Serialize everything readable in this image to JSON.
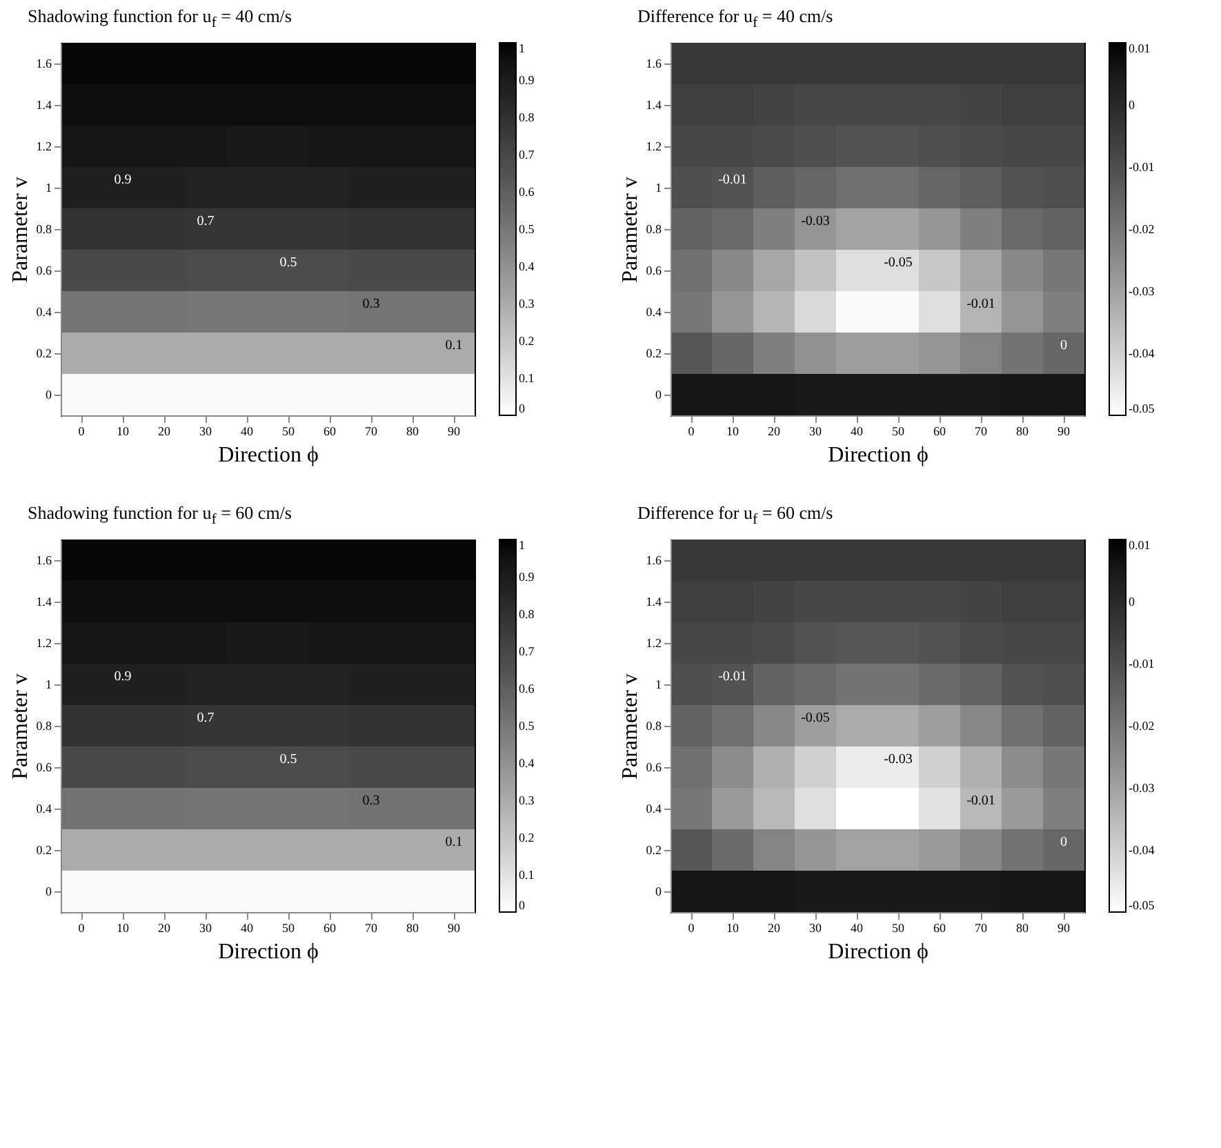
{
  "chart_data": [
    {
      "type": "heatmap",
      "title": "Shadowing function for u$_{f}$ = 40 cm/s",
      "xlabel": "Direction ϕ",
      "ylabel": "Parameter v",
      "categories": [
        "0",
        "10",
        "20",
        "30",
        "40",
        "50",
        "60",
        "70",
        "80",
        "90"
      ],
      "y_categories": [
        "1.6",
        "1.4",
        "1.2",
        "1",
        "0.8",
        "0.6",
        "0.4",
        "0.2",
        "0"
      ],
      "cells": [
        [
          0.98,
          0.98,
          0.98,
          0.98,
          0.98,
          0.98,
          0.98,
          0.98,
          0.98,
          0.98
        ],
        [
          0.96,
          0.96,
          0.96,
          0.96,
          0.96,
          0.96,
          0.96,
          0.96,
          0.96,
          0.96
        ],
        [
          0.93,
          0.93,
          0.93,
          0.93,
          0.92,
          0.92,
          0.93,
          0.93,
          0.93,
          0.93
        ],
        [
          0.88,
          0.88,
          0.88,
          0.87,
          0.87,
          0.87,
          0.87,
          0.88,
          0.88,
          0.88
        ],
        [
          0.79,
          0.79,
          0.79,
          0.78,
          0.78,
          0.78,
          0.78,
          0.79,
          0.79,
          0.79
        ],
        [
          0.69,
          0.69,
          0.69,
          0.68,
          0.68,
          0.68,
          0.68,
          0.69,
          0.69,
          0.69
        ],
        [
          0.51,
          0.51,
          0.51,
          0.5,
          0.5,
          0.5,
          0.5,
          0.51,
          0.51,
          0.51
        ],
        [
          0.3,
          0.3,
          0.3,
          0.3,
          0.3,
          0.3,
          0.3,
          0.3,
          0.3,
          0.3
        ],
        [
          0.02,
          0.02,
          0.02,
          0.02,
          0.02,
          0.02,
          0.02,
          0.02,
          0.02,
          0.02
        ]
      ],
      "clim": [
        0,
        1
      ],
      "cticks": [
        0,
        0.1,
        0.2,
        0.3,
        0.4,
        0.5,
        0.6,
        0.7,
        0.8,
        0.9,
        1
      ],
      "annotations": [
        "0.9",
        "0.7",
        "0.5",
        "0.3",
        "0.1"
      ]
    },
    {
      "type": "heatmap",
      "title": "Difference for u$_{f}$ = 40 cm/s",
      "xlabel": "Direction ϕ",
      "ylabel": "Parameter v",
      "categories": [
        "0",
        "10",
        "20",
        "30",
        "40",
        "50",
        "60",
        "70",
        "80",
        "90"
      ],
      "y_categories": [
        "1.6",
        "1.4",
        "1.2",
        "1",
        "0.8",
        "0.6",
        "0.4",
        "0.2",
        "0"
      ],
      "cells": [
        [
          -0.004,
          -0.004,
          -0.004,
          -0.004,
          -0.004,
          -0.004,
          -0.004,
          -0.004,
          -0.004,
          -0.004
        ],
        [
          -0.006,
          -0.006,
          -0.007,
          -0.008,
          -0.008,
          -0.008,
          -0.008,
          -0.007,
          -0.006,
          -0.006
        ],
        [
          -0.008,
          -0.008,
          -0.009,
          -0.01,
          -0.011,
          -0.011,
          -0.01,
          -0.009,
          -0.008,
          -0.008
        ],
        [
          -0.01,
          -0.011,
          -0.014,
          -0.016,
          -0.018,
          -0.018,
          -0.016,
          -0.014,
          -0.011,
          -0.01
        ],
        [
          -0.015,
          -0.017,
          -0.022,
          -0.027,
          -0.03,
          -0.03,
          -0.027,
          -0.022,
          -0.017,
          -0.015
        ],
        [
          -0.018,
          -0.024,
          -0.031,
          -0.037,
          -0.043,
          -0.043,
          -0.038,
          -0.031,
          -0.024,
          -0.02
        ],
        [
          -0.02,
          -0.027,
          -0.034,
          -0.042,
          -0.049,
          -0.049,
          -0.043,
          -0.034,
          -0.027,
          -0.022
        ],
        [
          -0.012,
          -0.016,
          -0.022,
          -0.026,
          -0.029,
          -0.029,
          -0.027,
          -0.023,
          -0.019,
          -0.016
        ],
        [
          0.006,
          0.006,
          0.006,
          0.005,
          0.005,
          0.005,
          0.005,
          0.005,
          0.006,
          0.006
        ]
      ],
      "clim": [
        -0.05,
        0.01
      ],
      "cticks": [
        -0.05,
        -0.04,
        -0.03,
        -0.02,
        -0.01,
        0,
        0.01
      ],
      "annotations": [
        "-0.01",
        "-0.03",
        "-0.05",
        "-0.01",
        "0"
      ]
    },
    {
      "type": "heatmap",
      "title": "Shadowing function for u$_{f}$ = 60 cm/s",
      "xlabel": "Direction ϕ",
      "ylabel": "Parameter v",
      "categories": [
        "0",
        "10",
        "20",
        "30",
        "40",
        "50",
        "60",
        "70",
        "80",
        "90"
      ],
      "y_categories": [
        "1.6",
        "1.4",
        "1.2",
        "1",
        "0.8",
        "0.6",
        "0.4",
        "0.2",
        "0"
      ],
      "cells": [
        [
          0.98,
          0.98,
          0.98,
          0.98,
          0.98,
          0.98,
          0.98,
          0.98,
          0.98,
          0.98
        ],
        [
          0.96,
          0.96,
          0.96,
          0.96,
          0.96,
          0.96,
          0.96,
          0.96,
          0.96,
          0.96
        ],
        [
          0.93,
          0.93,
          0.93,
          0.93,
          0.92,
          0.92,
          0.93,
          0.93,
          0.93,
          0.93
        ],
        [
          0.88,
          0.88,
          0.88,
          0.87,
          0.87,
          0.87,
          0.87,
          0.88,
          0.88,
          0.88
        ],
        [
          0.79,
          0.79,
          0.79,
          0.78,
          0.78,
          0.78,
          0.78,
          0.79,
          0.79,
          0.79
        ],
        [
          0.69,
          0.69,
          0.69,
          0.68,
          0.68,
          0.68,
          0.68,
          0.69,
          0.69,
          0.69
        ],
        [
          0.52,
          0.52,
          0.52,
          0.51,
          0.51,
          0.51,
          0.51,
          0.52,
          0.52,
          0.52
        ],
        [
          0.3,
          0.3,
          0.3,
          0.3,
          0.3,
          0.3,
          0.3,
          0.3,
          0.3,
          0.3
        ],
        [
          0.02,
          0.02,
          0.02,
          0.02,
          0.02,
          0.02,
          0.02,
          0.02,
          0.02,
          0.02
        ]
      ],
      "clim": [
        0,
        1
      ],
      "cticks": [
        0,
        0.1,
        0.2,
        0.3,
        0.4,
        0.5,
        0.6,
        0.7,
        0.8,
        0.9,
        1
      ],
      "annotations": [
        "0.9",
        "0.7",
        "0.5",
        "0.3",
        "0.1"
      ]
    },
    {
      "type": "heatmap",
      "title": "Difference for u$_{f}$ = 60 cm/s",
      "xlabel": "Direction ϕ",
      "ylabel": "Parameter v",
      "categories": [
        "0",
        "10",
        "20",
        "30",
        "40",
        "50",
        "60",
        "70",
        "80",
        "90"
      ],
      "y_categories": [
        "1.6",
        "1.4",
        "1.2",
        "1",
        "0.8",
        "0.6",
        "0.4",
        "0.2",
        "0"
      ],
      "cells": [
        [
          -0.004,
          -0.004,
          -0.004,
          -0.004,
          -0.004,
          -0.004,
          -0.004,
          -0.004,
          -0.004,
          -0.004
        ],
        [
          -0.006,
          -0.006,
          -0.007,
          -0.008,
          -0.008,
          -0.008,
          -0.008,
          -0.007,
          -0.006,
          -0.006
        ],
        [
          -0.008,
          -0.008,
          -0.009,
          -0.011,
          -0.012,
          -0.012,
          -0.011,
          -0.009,
          -0.008,
          -0.008
        ],
        [
          -0.01,
          -0.011,
          -0.015,
          -0.017,
          -0.019,
          -0.019,
          -0.017,
          -0.015,
          -0.011,
          -0.01
        ],
        [
          -0.015,
          -0.018,
          -0.024,
          -0.029,
          -0.032,
          -0.032,
          -0.029,
          -0.024,
          -0.018,
          -0.015
        ],
        [
          -0.018,
          -0.025,
          -0.033,
          -0.04,
          -0.046,
          -0.046,
          -0.04,
          -0.033,
          -0.025,
          -0.02
        ],
        [
          -0.02,
          -0.028,
          -0.035,
          -0.043,
          -0.05,
          -0.05,
          -0.044,
          -0.035,
          -0.028,
          -0.022
        ],
        [
          -0.012,
          -0.017,
          -0.023,
          -0.027,
          -0.03,
          -0.03,
          -0.028,
          -0.024,
          -0.019,
          -0.016
        ],
        [
          0.006,
          0.006,
          0.006,
          0.005,
          0.005,
          0.005,
          0.005,
          0.005,
          0.006,
          0.006
        ]
      ],
      "clim": [
        -0.05,
        0.01
      ],
      "cticks": [
        -0.05,
        -0.04,
        -0.03,
        -0.02,
        -0.01,
        0,
        0.01
      ],
      "annotations": [
        "-0.01",
        "-0.05",
        "-0.03",
        "-0.01",
        "0"
      ]
    }
  ]
}
